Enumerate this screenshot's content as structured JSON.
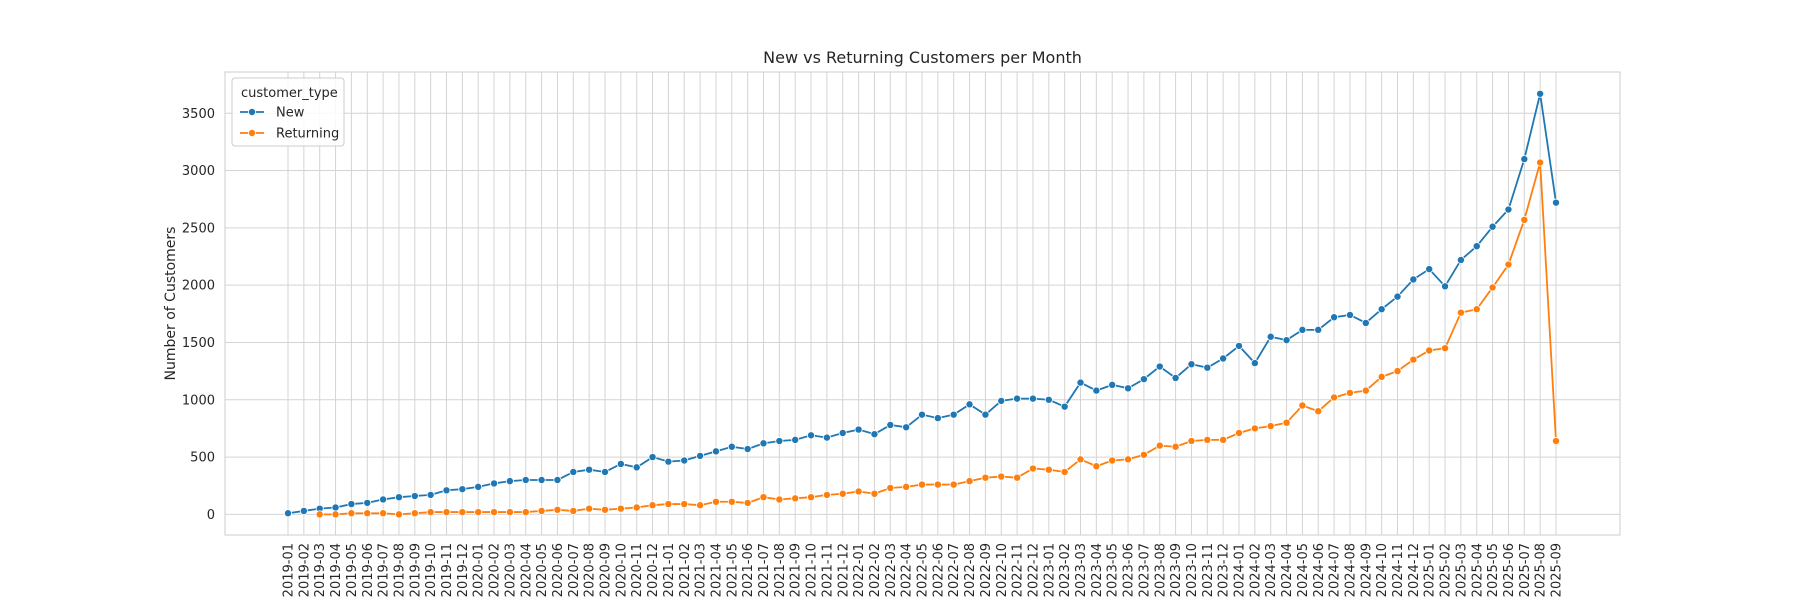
{
  "chart_data": {
    "type": "line",
    "title": "New vs Returning Customers per Month",
    "xlabel": "",
    "ylabel": "Number of Customers",
    "ylim": [
      -180,
      3860
    ],
    "yticks": [
      0,
      500,
      1000,
      1500,
      2000,
      2500,
      3000,
      3500
    ],
    "grid": true,
    "legend": {
      "title": "customer_type",
      "placement": "top-left"
    },
    "categories": [
      "2019-01",
      "2019-02",
      "2019-03",
      "2019-04",
      "2019-05",
      "2019-06",
      "2019-07",
      "2019-08",
      "2019-09",
      "2019-10",
      "2019-11",
      "2019-12",
      "2020-01",
      "2020-02",
      "2020-03",
      "2020-04",
      "2020-05",
      "2020-06",
      "2020-07",
      "2020-08",
      "2020-09",
      "2020-10",
      "2020-11",
      "2020-12",
      "2021-01",
      "2021-02",
      "2021-03",
      "2021-04",
      "2021-05",
      "2021-06",
      "2021-07",
      "2021-08",
      "2021-09",
      "2021-10",
      "2021-11",
      "2021-12",
      "2022-01",
      "2022-02",
      "2022-03",
      "2022-04",
      "2022-05",
      "2022-06",
      "2022-07",
      "2022-08",
      "2022-09",
      "2022-10",
      "2022-11",
      "2022-12",
      "2023-01",
      "2023-02",
      "2023-03",
      "2023-04",
      "2023-05",
      "2023-06",
      "2023-07",
      "2023-08",
      "2023-09",
      "2023-10",
      "2023-11",
      "2023-12",
      "2024-01",
      "2024-02",
      "2024-03",
      "2024-04",
      "2024-05",
      "2024-06",
      "2024-07",
      "2024-08",
      "2024-09",
      "2024-10",
      "2024-11",
      "2024-12",
      "2025-01",
      "2025-02",
      "2025-03",
      "2025-04",
      "2025-05",
      "2025-06",
      "2025-07",
      "2025-08",
      "2025-09"
    ],
    "series": [
      {
        "name": "New",
        "color": "#1f77b4",
        "values": [
          10,
          30,
          50,
          60,
          90,
          100,
          130,
          150,
          160,
          170,
          210,
          220,
          240,
          270,
          290,
          300,
          300,
          300,
          370,
          390,
          370,
          440,
          410,
          500,
          460,
          470,
          510,
          550,
          590,
          570,
          620,
          640,
          650,
          690,
          670,
          710,
          740,
          700,
          780,
          760,
          870,
          840,
          870,
          960,
          870,
          990,
          1010,
          1010,
          1000,
          940,
          1150,
          1080,
          1130,
          1100,
          1180,
          1290,
          1190,
          1310,
          1280,
          1360,
          1470,
          1320,
          1550,
          1520,
          1610,
          1610,
          1720,
          1740,
          1670,
          1790,
          1900,
          2050,
          2140,
          1990,
          2220,
          2340,
          2510,
          2660,
          3100,
          3670,
          2720
        ]
      },
      {
        "name": "Returning",
        "color": "#ff7f0e",
        "values": [
          null,
          null,
          0,
          0,
          10,
          10,
          10,
          0,
          10,
          20,
          20,
          20,
          20,
          20,
          20,
          20,
          30,
          40,
          30,
          50,
          40,
          50,
          60,
          80,
          90,
          90,
          80,
          110,
          110,
          100,
          150,
          130,
          140,
          150,
          170,
          180,
          200,
          180,
          230,
          240,
          260,
          260,
          260,
          290,
          320,
          330,
          320,
          400,
          390,
          370,
          480,
          420,
          470,
          480,
          520,
          600,
          590,
          640,
          650,
          650,
          710,
          750,
          770,
          800,
          950,
          900,
          1020,
          1060,
          1080,
          1200,
          1250,
          1350,
          1430,
          1450,
          1760,
          1790,
          1980,
          2180,
          2570,
          3070,
          640
        ]
      }
    ]
  }
}
